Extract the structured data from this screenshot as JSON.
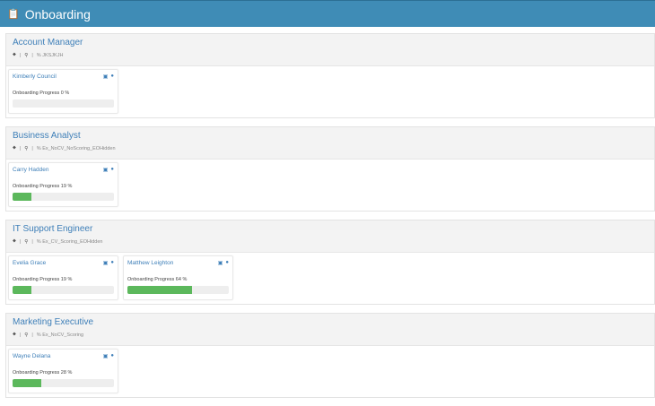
{
  "header": {
    "title": "Onboarding",
    "icon": "clipboard-icon"
  },
  "colors": {
    "header": "#3f8cb6",
    "progress": "#5cb85c",
    "link": "#3e7fb8"
  },
  "progress_label": "Onboarding Progress",
  "sections": [
    {
      "title": "Account Manager",
      "tag": "JKSJKJH",
      "candidates": [
        {
          "name": "Kimberly Council",
          "progress": 0,
          "progress_text": "Onboarding Progress 0 %"
        }
      ]
    },
    {
      "title": "Business Analyst",
      "tag": "Ex_NoCV_NoScoring_EOHidden",
      "candidates": [
        {
          "name": "Carry Hadden",
          "progress": 19,
          "progress_text": "Onboarding Progress 19 %"
        }
      ]
    },
    {
      "title": "IT Support Engineer",
      "tag": "Ex_CV_Scoring_EOHidden",
      "candidates": [
        {
          "name": "Evelia Grace",
          "progress": 19,
          "progress_text": "Onboarding Progress 19 %"
        },
        {
          "name": "Matthew Leighton",
          "progress": 64,
          "progress_text": "Onboarding Progress 64 %"
        }
      ]
    },
    {
      "title": "Marketing Executive",
      "tag": "Ex_NoCV_Scoring",
      "candidates": [
        {
          "name": "Wayne Delana",
          "progress": 28,
          "progress_text": "Onboarding Progress 28 %"
        }
      ]
    }
  ]
}
